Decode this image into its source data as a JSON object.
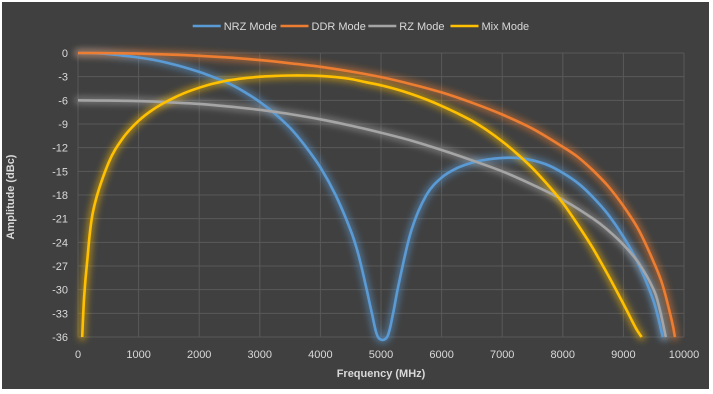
{
  "chart_data": {
    "type": "line",
    "title": "",
    "xlabel": "Frequency (MHz)",
    "ylabel": "Amplitude (dBc)",
    "xlim": [
      0,
      10000
    ],
    "ylim": [
      -36,
      0
    ],
    "x_ticks": [
      "0",
      "1000",
      "2000",
      "3000",
      "4000",
      "5000",
      "6000",
      "7000",
      "8000",
      "9000",
      "10000"
    ],
    "y_ticks": [
      "0",
      "-3",
      "-6",
      "-9",
      "-12",
      "-15",
      "-18",
      "-21",
      "-24",
      "-27",
      "-30",
      "-33",
      "-36"
    ],
    "grid": true,
    "legend_position": "top",
    "x": [
      0,
      250,
      500,
      750,
      1000,
      1250,
      1500,
      1750,
      2000,
      2250,
      2500,
      2750,
      3000,
      3250,
      3500,
      3750,
      4000,
      4250,
      4500,
      4750,
      5000,
      5250,
      5500,
      5750,
      6000,
      6250,
      6500,
      6750,
      7000,
      7250,
      7500,
      7750,
      8000,
      8250,
      8500,
      8750,
      9000,
      9250,
      9500,
      9750,
      10000
    ],
    "series": [
      {
        "name": "NRZ Mode",
        "color": "#5b9bd5",
        "points": [
          [
            0,
            0
          ],
          [
            250,
            -0.02
          ],
          [
            500,
            -0.14
          ],
          [
            750,
            -0.34
          ],
          [
            1000,
            -0.57
          ],
          [
            1250,
            -0.88
          ],
          [
            1500,
            -1.3
          ],
          [
            1750,
            -1.8
          ],
          [
            2000,
            -2.4
          ],
          [
            2250,
            -3.1
          ],
          [
            2500,
            -3.9
          ],
          [
            2750,
            -4.95
          ],
          [
            3000,
            -6.2
          ],
          [
            3250,
            -7.7
          ],
          [
            3500,
            -9.5
          ],
          [
            3750,
            -11.8
          ],
          [
            4000,
            -14.5
          ],
          [
            4250,
            -18.0
          ],
          [
            4500,
            -22.5
          ],
          [
            4625,
            -25.5
          ],
          [
            4750,
            -29.5
          ],
          [
            4850,
            -33.0
          ],
          [
            4950,
            -36
          ],
          [
            5100,
            -36
          ],
          [
            5200,
            -33.0
          ],
          [
            5300,
            -29.0
          ],
          [
            5500,
            -22.5
          ],
          [
            5750,
            -18.0
          ],
          [
            6000,
            -15.8
          ],
          [
            6250,
            -14.6
          ],
          [
            6500,
            -13.9
          ],
          [
            6750,
            -13.5
          ],
          [
            7000,
            -13.3
          ],
          [
            7250,
            -13.3
          ],
          [
            7500,
            -13.6
          ],
          [
            7750,
            -14.2
          ],
          [
            8000,
            -15.2
          ],
          [
            8250,
            -16.5
          ],
          [
            8500,
            -18.3
          ],
          [
            8750,
            -20.5
          ],
          [
            9000,
            -23.3
          ],
          [
            9250,
            -26.8
          ],
          [
            9500,
            -31.5
          ],
          [
            9650,
            -36
          ]
        ]
      },
      {
        "name": "DDR Mode",
        "color": "#ed7d31",
        "points": [
          [
            0,
            0
          ],
          [
            500,
            -0.02
          ],
          [
            1000,
            -0.08
          ],
          [
            1500,
            -0.2
          ],
          [
            2000,
            -0.35
          ],
          [
            2500,
            -0.58
          ],
          [
            3000,
            -0.9
          ],
          [
            3500,
            -1.3
          ],
          [
            4000,
            -1.75
          ],
          [
            4500,
            -2.35
          ],
          [
            5000,
            -3.05
          ],
          [
            5500,
            -3.95
          ],
          [
            6000,
            -5.0
          ],
          [
            6500,
            -6.3
          ],
          [
            7000,
            -7.8
          ],
          [
            7500,
            -9.6
          ],
          [
            8000,
            -11.9
          ],
          [
            8250,
            -13.2
          ],
          [
            8500,
            -14.9
          ],
          [
            8750,
            -16.9
          ],
          [
            9000,
            -19.4
          ],
          [
            9250,
            -22.4
          ],
          [
            9500,
            -26.5
          ],
          [
            9650,
            -29.5
          ],
          [
            9800,
            -34.0
          ],
          [
            9850,
            -36
          ]
        ]
      },
      {
        "name": "RZ Mode",
        "color": "#a5a5a5",
        "points": [
          [
            0,
            -6.0
          ],
          [
            500,
            -6.03
          ],
          [
            1000,
            -6.1
          ],
          [
            1500,
            -6.25
          ],
          [
            2000,
            -6.45
          ],
          [
            2500,
            -6.8
          ],
          [
            3000,
            -7.2
          ],
          [
            3500,
            -7.75
          ],
          [
            4000,
            -8.4
          ],
          [
            4500,
            -9.2
          ],
          [
            5000,
            -10.1
          ],
          [
            5500,
            -11.1
          ],
          [
            6000,
            -12.3
          ],
          [
            6500,
            -13.6
          ],
          [
            7000,
            -15.0
          ],
          [
            7500,
            -16.7
          ],
          [
            8000,
            -18.6
          ],
          [
            8500,
            -21.0
          ],
          [
            8750,
            -22.5
          ],
          [
            9000,
            -24.3
          ],
          [
            9250,
            -26.6
          ],
          [
            9500,
            -30.0
          ],
          [
            9600,
            -32.5
          ],
          [
            9700,
            -36
          ]
        ]
      },
      {
        "name": "Mix Mode",
        "color": "#ffc000",
        "points": [
          [
            70,
            -36
          ],
          [
            100,
            -31.0
          ],
          [
            150,
            -26.5
          ],
          [
            250,
            -20.0
          ],
          [
            500,
            -14.0
          ],
          [
            750,
            -10.7
          ],
          [
            1000,
            -8.6
          ],
          [
            1250,
            -7.1
          ],
          [
            1500,
            -6.0
          ],
          [
            1750,
            -5.1
          ],
          [
            2000,
            -4.4
          ],
          [
            2250,
            -3.85
          ],
          [
            2500,
            -3.45
          ],
          [
            2750,
            -3.2
          ],
          [
            3000,
            -3.0
          ],
          [
            3250,
            -2.9
          ],
          [
            3500,
            -2.85
          ],
          [
            3750,
            -2.85
          ],
          [
            4000,
            -2.9
          ],
          [
            4250,
            -3.05
          ],
          [
            4500,
            -3.3
          ],
          [
            4750,
            -3.7
          ],
          [
            5000,
            -4.1
          ],
          [
            5250,
            -4.6
          ],
          [
            5500,
            -5.2
          ],
          [
            5750,
            -5.9
          ],
          [
            6000,
            -6.7
          ],
          [
            6250,
            -7.6
          ],
          [
            6500,
            -8.6
          ],
          [
            6750,
            -9.8
          ],
          [
            7000,
            -11.2
          ],
          [
            7250,
            -12.8
          ],
          [
            7500,
            -14.6
          ],
          [
            7750,
            -16.7
          ],
          [
            8000,
            -19.0
          ],
          [
            8250,
            -21.8
          ],
          [
            8500,
            -24.8
          ],
          [
            8750,
            -28.2
          ],
          [
            9000,
            -31.8
          ],
          [
            9200,
            -34.8
          ],
          [
            9300,
            -36
          ]
        ]
      }
    ]
  }
}
